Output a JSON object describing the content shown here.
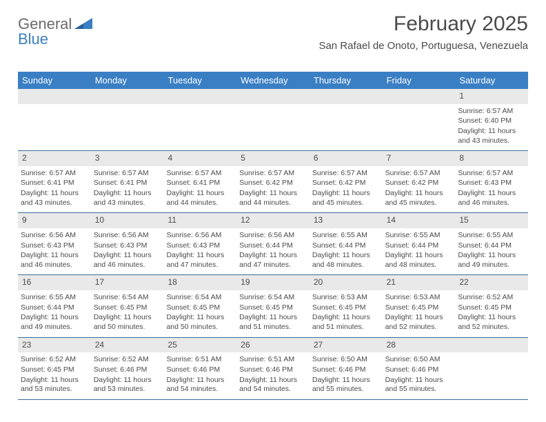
{
  "logo": {
    "text1": "General",
    "text2": "Blue"
  },
  "header": {
    "month_title": "February 2025",
    "location": "San Rafael de Onoto, Portuguesa, Venezuela"
  },
  "colors": {
    "header_bg": "#3a7fc4",
    "header_text": "#ffffff",
    "daynum_bg": "#e9e9e9",
    "body_text": "#4a4a4a",
    "week_divider": "#3a6a99"
  },
  "dayNames": [
    "Sunday",
    "Monday",
    "Tuesday",
    "Wednesday",
    "Thursday",
    "Friday",
    "Saturday"
  ],
  "startOffset": 6,
  "days": [
    {
      "n": 1,
      "sunrise": "6:57 AM",
      "sunset": "6:40 PM",
      "daylight": "11 hours and 43 minutes."
    },
    {
      "n": 2,
      "sunrise": "6:57 AM",
      "sunset": "6:41 PM",
      "daylight": "11 hours and 43 minutes."
    },
    {
      "n": 3,
      "sunrise": "6:57 AM",
      "sunset": "6:41 PM",
      "daylight": "11 hours and 43 minutes."
    },
    {
      "n": 4,
      "sunrise": "6:57 AM",
      "sunset": "6:41 PM",
      "daylight": "11 hours and 44 minutes."
    },
    {
      "n": 5,
      "sunrise": "6:57 AM",
      "sunset": "6:42 PM",
      "daylight": "11 hours and 44 minutes."
    },
    {
      "n": 6,
      "sunrise": "6:57 AM",
      "sunset": "6:42 PM",
      "daylight": "11 hours and 45 minutes."
    },
    {
      "n": 7,
      "sunrise": "6:57 AM",
      "sunset": "6:42 PM",
      "daylight": "11 hours and 45 minutes."
    },
    {
      "n": 8,
      "sunrise": "6:57 AM",
      "sunset": "6:43 PM",
      "daylight": "11 hours and 46 minutes."
    },
    {
      "n": 9,
      "sunrise": "6:56 AM",
      "sunset": "6:43 PM",
      "daylight": "11 hours and 46 minutes."
    },
    {
      "n": 10,
      "sunrise": "6:56 AM",
      "sunset": "6:43 PM",
      "daylight": "11 hours and 46 minutes."
    },
    {
      "n": 11,
      "sunrise": "6:56 AM",
      "sunset": "6:43 PM",
      "daylight": "11 hours and 47 minutes."
    },
    {
      "n": 12,
      "sunrise": "6:56 AM",
      "sunset": "6:44 PM",
      "daylight": "11 hours and 47 minutes."
    },
    {
      "n": 13,
      "sunrise": "6:55 AM",
      "sunset": "6:44 PM",
      "daylight": "11 hours and 48 minutes."
    },
    {
      "n": 14,
      "sunrise": "6:55 AM",
      "sunset": "6:44 PM",
      "daylight": "11 hours and 48 minutes."
    },
    {
      "n": 15,
      "sunrise": "6:55 AM",
      "sunset": "6:44 PM",
      "daylight": "11 hours and 49 minutes."
    },
    {
      "n": 16,
      "sunrise": "6:55 AM",
      "sunset": "6:44 PM",
      "daylight": "11 hours and 49 minutes."
    },
    {
      "n": 17,
      "sunrise": "6:54 AM",
      "sunset": "6:45 PM",
      "daylight": "11 hours and 50 minutes."
    },
    {
      "n": 18,
      "sunrise": "6:54 AM",
      "sunset": "6:45 PM",
      "daylight": "11 hours and 50 minutes."
    },
    {
      "n": 19,
      "sunrise": "6:54 AM",
      "sunset": "6:45 PM",
      "daylight": "11 hours and 51 minutes."
    },
    {
      "n": 20,
      "sunrise": "6:53 AM",
      "sunset": "6:45 PM",
      "daylight": "11 hours and 51 minutes."
    },
    {
      "n": 21,
      "sunrise": "6:53 AM",
      "sunset": "6:45 PM",
      "daylight": "11 hours and 52 minutes."
    },
    {
      "n": 22,
      "sunrise": "6:52 AM",
      "sunset": "6:45 PM",
      "daylight": "11 hours and 52 minutes."
    },
    {
      "n": 23,
      "sunrise": "6:52 AM",
      "sunset": "6:45 PM",
      "daylight": "11 hours and 53 minutes."
    },
    {
      "n": 24,
      "sunrise": "6:52 AM",
      "sunset": "6:46 PM",
      "daylight": "11 hours and 53 minutes."
    },
    {
      "n": 25,
      "sunrise": "6:51 AM",
      "sunset": "6:46 PM",
      "daylight": "11 hours and 54 minutes."
    },
    {
      "n": 26,
      "sunrise": "6:51 AM",
      "sunset": "6:46 PM",
      "daylight": "11 hours and 54 minutes."
    },
    {
      "n": 27,
      "sunrise": "6:50 AM",
      "sunset": "6:46 PM",
      "daylight": "11 hours and 55 minutes."
    },
    {
      "n": 28,
      "sunrise": "6:50 AM",
      "sunset": "6:46 PM",
      "daylight": "11 hours and 55 minutes."
    }
  ],
  "labels": {
    "sunrise": "Sunrise:",
    "sunset": "Sunset:",
    "daylight": "Daylight:"
  }
}
